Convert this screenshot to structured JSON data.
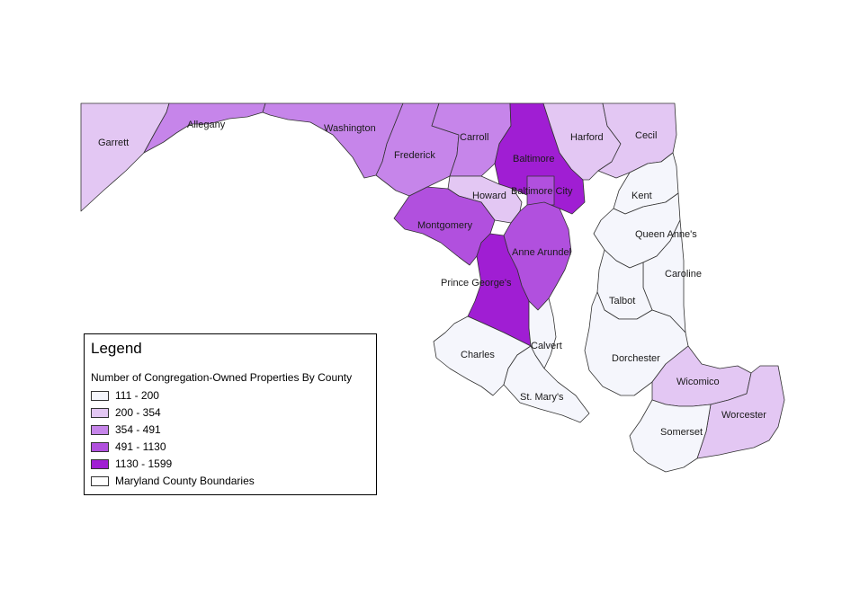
{
  "colors": {
    "c1": "#f5f6fc",
    "c2": "#e3c7f3",
    "c3": "#c685ea",
    "c4": "#b150de",
    "c5": "#a01ed3",
    "boundary": "#ffffff"
  },
  "map": {
    "counties": [
      {
        "name": "Garrett",
        "class": "c2"
      },
      {
        "name": "Allegany",
        "class": "c3"
      },
      {
        "name": "Washington",
        "class": "c3"
      },
      {
        "name": "Frederick",
        "class": "c3"
      },
      {
        "name": "Carroll",
        "class": "c3"
      },
      {
        "name": "Baltimore",
        "class": "c5"
      },
      {
        "name": "Baltimore City",
        "class": "c4"
      },
      {
        "name": "Harford",
        "class": "c2"
      },
      {
        "name": "Cecil",
        "class": "c2"
      },
      {
        "name": "Howard",
        "class": "c2"
      },
      {
        "name": "Montgomery",
        "class": "c4"
      },
      {
        "name": "Anne Arundel",
        "class": "c4"
      },
      {
        "name": "Prince George's",
        "class": "c5"
      },
      {
        "name": "Calvert",
        "class": "c1"
      },
      {
        "name": "Charles",
        "class": "c1"
      },
      {
        "name": "St. Mary's",
        "class": "c1"
      },
      {
        "name": "Kent",
        "class": "c1"
      },
      {
        "name": "Queen Anne's",
        "class": "c1"
      },
      {
        "name": "Caroline",
        "class": "c1"
      },
      {
        "name": "Talbot",
        "class": "c1"
      },
      {
        "name": "Dorchester",
        "class": "c1"
      },
      {
        "name": "Wicomico",
        "class": "c2"
      },
      {
        "name": "Worcester",
        "class": "c2"
      },
      {
        "name": "Somerset",
        "class": "c1"
      }
    ]
  },
  "legend": {
    "title": "Legend",
    "subtitle": "Number of Congregation-Owned Properties By County",
    "items": [
      {
        "label": "111 - 200",
        "color": "#f5f6fc"
      },
      {
        "label": "200 - 354",
        "color": "#e3c7f3"
      },
      {
        "label": "354 - 491",
        "color": "#c685ea"
      },
      {
        "label": "491 - 1130",
        "color": "#b150de"
      },
      {
        "label": "1130 - 1599",
        "color": "#a01ed3"
      },
      {
        "label": "Maryland County Boundaries",
        "color": "#ffffff"
      }
    ]
  }
}
